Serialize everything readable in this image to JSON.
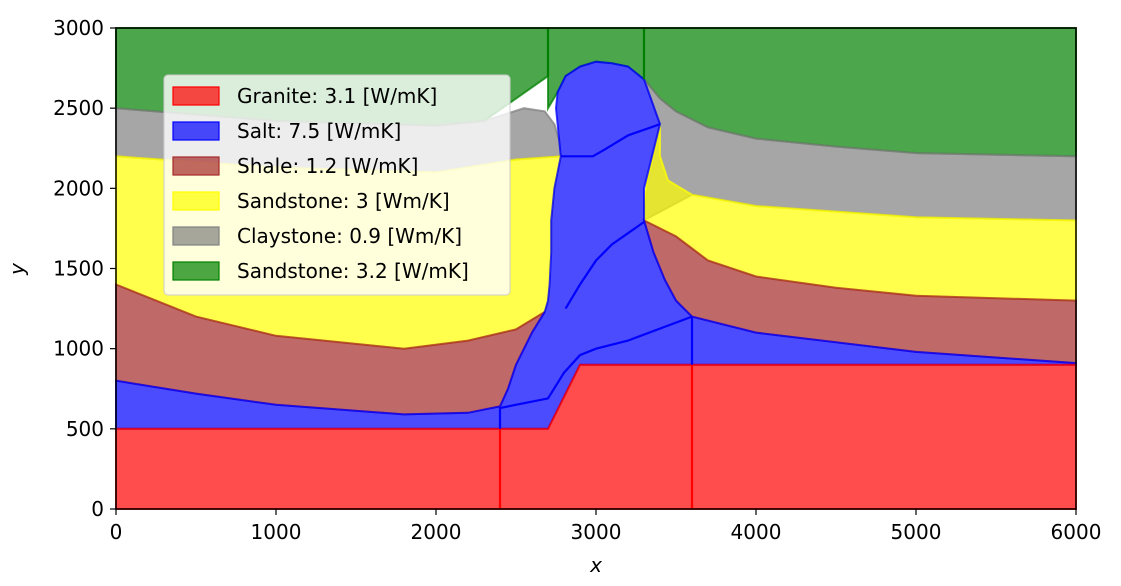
{
  "chart_data": {
    "type": "area",
    "title": "",
    "xlabel": "x",
    "ylabel": "y",
    "xlim": [
      0,
      6000
    ],
    "ylim": [
      0,
      3000
    ],
    "xticks": [
      0,
      1000,
      2000,
      3000,
      4000,
      5000,
      6000
    ],
    "yticks": [
      0,
      500,
      1000,
      1500,
      2000,
      2500,
      3000
    ],
    "xtick_labels": [
      "0",
      "1000",
      "2000",
      "3000",
      "4000",
      "5000",
      "6000"
    ],
    "ytick_labels": [
      "0",
      "500",
      "1000",
      "1500",
      "2000",
      "2500",
      "3000"
    ],
    "grid": false,
    "legend_position": "upper-left",
    "legend": [
      {
        "label": "Granite: 3.1 [W/mK]",
        "color": "#ff0000"
      },
      {
        "label": "Salt: 7.5 [W/mK]",
        "color": "#0000ff"
      },
      {
        "label": "Shale: 1.2 [W/mK]",
        "color": "#a52a2a"
      },
      {
        "label": "Sandstone: 3 [Wm/K]",
        "color": "#ffff00"
      },
      {
        "label": "Claystone: 0.9 [Wm/K]",
        "color": "#808080"
      },
      {
        "label": "Sandstone: 3.2 [W/mK]",
        "color": "#008000"
      }
    ],
    "regions": [
      {
        "name": "sandstone-top-left",
        "layer": 5,
        "fill": "#008000",
        "points": [
          [
            0,
            3000
          ],
          [
            2700,
            3000
          ],
          [
            2700,
            2700
          ],
          [
            2300,
            2420
          ],
          [
            2000,
            2390
          ],
          [
            1000,
            2420
          ],
          [
            0,
            2500
          ]
        ]
      },
      {
        "name": "sandstone-top-middle",
        "layer": 5,
        "fill": "#008000",
        "points": [
          [
            2700,
            3000
          ],
          [
            3300,
            3000
          ],
          [
            3300,
            2680
          ],
          [
            3200,
            2760
          ],
          [
            3100,
            2780
          ],
          [
            3000,
            2790
          ],
          [
            2900,
            2760
          ],
          [
            2810,
            2700
          ],
          [
            2760,
            2600
          ],
          [
            2700,
            2500
          ],
          [
            2700,
            2700
          ]
        ]
      },
      {
        "name": "sandstone-top-right",
        "layer": 5,
        "fill": "#008000",
        "points": [
          [
            3300,
            3000
          ],
          [
            6000,
            3000
          ],
          [
            6000,
            2200
          ],
          [
            5000,
            2220
          ],
          [
            4500,
            2260
          ],
          [
            4000,
            2310
          ],
          [
            3700,
            2380
          ],
          [
            3500,
            2480
          ],
          [
            3400,
            2560
          ],
          [
            3300,
            2680
          ]
        ]
      },
      {
        "name": "claystone-left",
        "layer": 4,
        "fill": "#808080",
        "points": [
          [
            0,
            2500
          ],
          [
            1000,
            2420
          ],
          [
            2000,
            2390
          ],
          [
            2300,
            2420
          ],
          [
            2550,
            2500
          ],
          [
            2680,
            2480
          ],
          [
            2740,
            2400
          ],
          [
            2770,
            2300
          ],
          [
            2780,
            2200
          ],
          [
            2500,
            2180
          ],
          [
            2000,
            2100
          ],
          [
            1000,
            2130
          ],
          [
            0,
            2200
          ]
        ]
      },
      {
        "name": "claystone-right",
        "layer": 4,
        "fill": "#808080",
        "points": [
          [
            3300,
            2680
          ],
          [
            3400,
            2560
          ],
          [
            3500,
            2480
          ],
          [
            3700,
            2380
          ],
          [
            4000,
            2310
          ],
          [
            4500,
            2260
          ],
          [
            5000,
            2220
          ],
          [
            6000,
            2200
          ],
          [
            6000,
            1800
          ],
          [
            5000,
            1820
          ],
          [
            4000,
            1890
          ],
          [
            3600,
            1960
          ],
          [
            3300,
            1800
          ],
          [
            3320,
            2050
          ],
          [
            3370,
            2250
          ],
          [
            3400,
            2400
          ]
        ]
      },
      {
        "name": "sandstone-left",
        "layer": 3,
        "fill": "#ffff00",
        "points": [
          [
            0,
            2200
          ],
          [
            1000,
            2130
          ],
          [
            2000,
            2100
          ],
          [
            2500,
            2180
          ],
          [
            2780,
            2200
          ],
          [
            2760,
            2100
          ],
          [
            2740,
            2000
          ],
          [
            2730,
            1900
          ],
          [
            2720,
            1800
          ],
          [
            2720,
            1700
          ],
          [
            2720,
            1600
          ],
          [
            2710,
            1500
          ],
          [
            2710,
            1400
          ],
          [
            2700,
            1300
          ],
          [
            2680,
            1230
          ],
          [
            2500,
            1120
          ],
          [
            2200,
            1050
          ],
          [
            1800,
            1000
          ],
          [
            1000,
            1080
          ],
          [
            500,
            1200
          ],
          [
            0,
            1400
          ]
        ]
      },
      {
        "name": "sandstone-right",
        "layer": 3,
        "fill": "#ffff00",
        "points": [
          [
            3400,
            2400
          ],
          [
            3370,
            2250
          ],
          [
            3320,
            2050
          ],
          [
            3300,
            1900
          ],
          [
            3300,
            1800
          ],
          [
            3500,
            1700
          ],
          [
            3700,
            1550
          ],
          [
            4000,
            1450
          ],
          [
            4500,
            1380
          ],
          [
            5000,
            1330
          ],
          [
            6000,
            1300
          ],
          [
            6000,
            1800
          ],
          [
            5000,
            1820
          ],
          [
            4000,
            1890
          ],
          [
            3600,
            1960
          ],
          [
            3450,
            2050
          ],
          [
            3400,
            2200
          ]
        ]
      },
      {
        "name": "shale-left",
        "layer": 2,
        "fill": "#a52a2a",
        "points": [
          [
            0,
            1400
          ],
          [
            500,
            1200
          ],
          [
            1000,
            1080
          ],
          [
            1800,
            1000
          ],
          [
            2200,
            1050
          ],
          [
            2500,
            1120
          ],
          [
            2680,
            1230
          ],
          [
            2600,
            1100
          ],
          [
            2500,
            900
          ],
          [
            2450,
            750
          ],
          [
            2400,
            640
          ],
          [
            2200,
            600
          ],
          [
            1800,
            590
          ],
          [
            1000,
            650
          ],
          [
            500,
            720
          ],
          [
            0,
            800
          ]
        ]
      },
      {
        "name": "shale-right",
        "layer": 2,
        "fill": "#a52a2a",
        "points": [
          [
            3300,
            1800
          ],
          [
            3360,
            1600
          ],
          [
            3430,
            1430
          ],
          [
            3500,
            1300
          ],
          [
            3600,
            1200
          ],
          [
            4000,
            1100
          ],
          [
            5000,
            980
          ],
          [
            6000,
            910
          ],
          [
            6000,
            1300
          ],
          [
            5000,
            1330
          ],
          [
            4500,
            1380
          ],
          [
            4000,
            1450
          ],
          [
            3700,
            1550
          ],
          [
            3500,
            1700
          ]
        ]
      },
      {
        "name": "salt-body",
        "layer": 1,
        "fill": "#0000ff",
        "points": [
          [
            0,
            500
          ],
          [
            2700,
            500
          ],
          [
            2900,
            900
          ],
          [
            6000,
            900
          ],
          [
            6000,
            910
          ],
          [
            5000,
            980
          ],
          [
            4000,
            1100
          ],
          [
            3600,
            1200
          ],
          [
            3500,
            1300
          ],
          [
            3430,
            1430
          ],
          [
            3360,
            1600
          ],
          [
            3300,
            1800
          ],
          [
            3300,
            2000
          ],
          [
            3350,
            2200
          ],
          [
            3400,
            2400
          ],
          [
            3300,
            2680
          ],
          [
            3200,
            2760
          ],
          [
            3100,
            2780
          ],
          [
            3000,
            2790
          ],
          [
            2900,
            2760
          ],
          [
            2810,
            2700
          ],
          [
            2760,
            2600
          ],
          [
            2750,
            2500
          ],
          [
            2780,
            2200
          ],
          [
            2760,
            2100
          ],
          [
            2740,
            2000
          ],
          [
            2730,
            1900
          ],
          [
            2720,
            1800
          ],
          [
            2720,
            1600
          ],
          [
            2710,
            1400
          ],
          [
            2700,
            1300
          ],
          [
            2680,
            1230
          ],
          [
            2600,
            1100
          ],
          [
            2500,
            900
          ],
          [
            2450,
            750
          ],
          [
            2400,
            640
          ],
          [
            2200,
            600
          ],
          [
            1800,
            590
          ],
          [
            1000,
            650
          ],
          [
            500,
            720
          ],
          [
            0,
            800
          ]
        ]
      },
      {
        "name": "granite",
        "layer": 0,
        "fill": "#ff0000",
        "points": [
          [
            0,
            0
          ],
          [
            6000,
            0
          ],
          [
            6000,
            900
          ],
          [
            2900,
            900
          ],
          [
            2700,
            500
          ],
          [
            0,
            500
          ]
        ]
      }
    ],
    "lines": [
      {
        "name": "granite-edge-left",
        "color": "#ff0000",
        "points": [
          [
            2400,
            0
          ],
          [
            2400,
            500
          ]
        ]
      },
      {
        "name": "granite-edge-right",
        "color": "#ff0000",
        "points": [
          [
            3600,
            0
          ],
          [
            3600,
            900
          ]
        ]
      },
      {
        "name": "salt-edge-step",
        "color": "#0000ff",
        "points": [
          [
            2400,
            500
          ],
          [
            2400,
            630
          ],
          [
            2700,
            690
          ],
          [
            2800,
            850
          ],
          [
            2900,
            960
          ],
          [
            3000,
            1000
          ],
          [
            3200,
            1050
          ],
          [
            3600,
            1200
          ]
        ]
      },
      {
        "name": "salt-edge-vertical",
        "color": "#0000ff",
        "points": [
          [
            3600,
            900
          ],
          [
            3600,
            1200
          ]
        ]
      },
      {
        "name": "salt-edge-diag",
        "color": "#0000ff",
        "points": [
          [
            2810,
            1250
          ],
          [
            2900,
            1400
          ],
          [
            3000,
            1550
          ],
          [
            3100,
            1650
          ],
          [
            3200,
            1720
          ],
          [
            3300,
            1790
          ]
        ]
      },
      {
        "name": "salt-edge-upper",
        "color": "#0000ff",
        "points": [
          [
            2780,
            2200
          ],
          [
            2980,
            2200
          ],
          [
            3050,
            2240
          ],
          [
            3200,
            2330
          ],
          [
            3400,
            2400
          ]
        ]
      },
      {
        "name": "sandstone-top-edge-left",
        "color": "#008000",
        "points": [
          [
            2700,
            2700
          ],
          [
            2700,
            3000
          ]
        ]
      },
      {
        "name": "sandstone-top-edge-right",
        "color": "#008000",
        "points": [
          [
            3300,
            2680
          ],
          [
            3300,
            3000
          ]
        ]
      }
    ]
  }
}
